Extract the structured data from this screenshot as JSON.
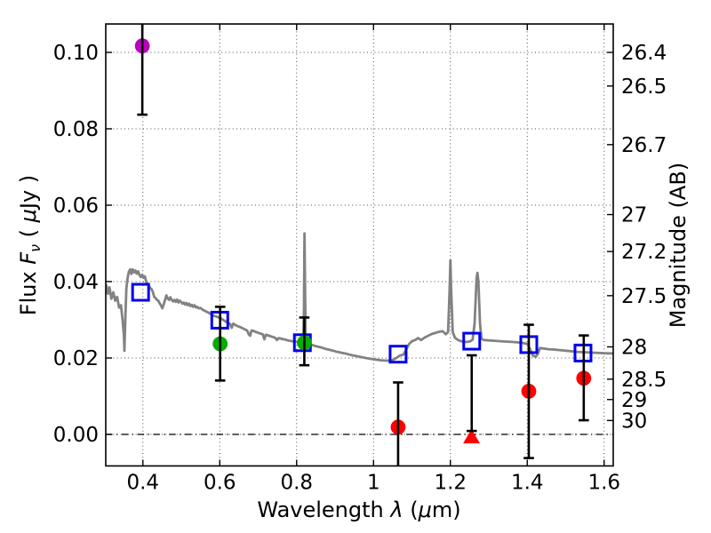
{
  "chart_data": {
    "type": "scatter",
    "title": "",
    "xlabel_parts": [
      {
        "t": "Wavelength  "
      },
      {
        "t": "λ",
        "i": 1
      },
      {
        "t": " ("
      },
      {
        "t": "μ",
        "i": 1
      },
      {
        "t": "m)"
      }
    ],
    "ylabel_left_parts": [
      {
        "t": "Flux  "
      },
      {
        "t": "F",
        "i": 1
      },
      {
        "t": "ν",
        "i": 1,
        "sub": 1
      },
      {
        "t": "  ( "
      },
      {
        "t": "μ",
        "i": 1
      },
      {
        "t": "Jy )"
      }
    ],
    "ylabel_right": "Magnitude (AB)",
    "xlim": [
      0.3034,
      1.6237
    ],
    "ylim": [
      -0.00826,
      0.10744
    ],
    "grid": "dotted, at x ticks and left y ticks",
    "zero_line": "black dash-dot at flux = 0",
    "x_ticks": [
      {
        "v": 0.4,
        "label": "0.4"
      },
      {
        "v": 0.6,
        "label": "0.6"
      },
      {
        "v": 0.8,
        "label": "0.8"
      },
      {
        "v": 1.0,
        "label": "1"
      },
      {
        "v": 1.2,
        "label": "1.2"
      },
      {
        "v": 1.4,
        "label": "1.4"
      },
      {
        "v": 1.6,
        "label": "1.6"
      }
    ],
    "y_ticks_left": [
      {
        "v": 0.0,
        "label": "0.00"
      },
      {
        "v": 0.02,
        "label": "0.02"
      },
      {
        "v": 0.04,
        "label": "0.04"
      },
      {
        "v": 0.06,
        "label": "0.06"
      },
      {
        "v": 0.08,
        "label": "0.08"
      },
      {
        "v": 0.1,
        "label": "0.10"
      }
    ],
    "y_ticks_right": [
      {
        "mag": 26.4,
        "label": "26.4"
      },
      {
        "mag": 26.5,
        "label": "26.5"
      },
      {
        "mag": 26.7,
        "label": "26.7"
      },
      {
        "mag": 27.0,
        "label": "27"
      },
      {
        "mag": 27.2,
        "label": "27.2"
      },
      {
        "mag": 27.5,
        "label": "27.5"
      },
      {
        "mag": 28.0,
        "label": "28"
      },
      {
        "mag": 28.5,
        "label": "28.5"
      },
      {
        "mag": 29.0,
        "label": "29"
      },
      {
        "mag": 30.0,
        "label": "30"
      }
    ],
    "right_axis_zeropoint_mag": 23.9,
    "colors": {
      "spectrum": "#828282",
      "square": "#0000ee",
      "magenta": "#bb00bb",
      "green": "#00ad00",
      "red": "#fe0000",
      "errorbar": "#000000"
    },
    "series": [
      {
        "name": "model_spectrum",
        "type": "line",
        "color": "#828282",
        "points": [
          [
            0.305,
            0.039
          ],
          [
            0.309,
            0.0368
          ],
          [
            0.313,
            0.0385
          ],
          [
            0.318,
            0.0355
          ],
          [
            0.323,
            0.0372
          ],
          [
            0.328,
            0.035
          ],
          [
            0.333,
            0.036
          ],
          [
            0.338,
            0.0332
          ],
          [
            0.343,
            0.0338
          ],
          [
            0.347,
            0.03
          ],
          [
            0.3505,
            0.026
          ],
          [
            0.352,
            0.0219
          ],
          [
            0.3545,
            0.031
          ],
          [
            0.357,
            0.0382
          ],
          [
            0.36,
            0.0408
          ],
          [
            0.3635,
            0.0426
          ],
          [
            0.367,
            0.0432
          ],
          [
            0.37,
            0.042
          ],
          [
            0.3735,
            0.0432
          ],
          [
            0.377,
            0.0424
          ],
          [
            0.3805,
            0.0429
          ],
          [
            0.384,
            0.0421
          ],
          [
            0.3875,
            0.0427
          ],
          [
            0.391,
            0.0417
          ],
          [
            0.3945,
            0.0412
          ],
          [
            0.398,
            0.0418
          ],
          [
            0.4015,
            0.041
          ],
          [
            0.405,
            0.0414
          ],
          [
            0.4085,
            0.04
          ],
          [
            0.412,
            0.0394
          ],
          [
            0.4155,
            0.039
          ],
          [
            0.419,
            0.0383
          ],
          [
            0.4225,
            0.038
          ],
          [
            0.426,
            0.0373
          ],
          [
            0.4295,
            0.036
          ],
          [
            0.433,
            0.0357
          ],
          [
            0.4365,
            0.0352
          ],
          [
            0.44,
            0.035
          ],
          [
            0.4435,
            0.0343
          ],
          [
            0.447,
            0.0338
          ],
          [
            0.4505,
            0.033
          ],
          [
            0.454,
            0.034
          ],
          [
            0.4575,
            0.0351
          ],
          [
            0.461,
            0.0364
          ],
          [
            0.4645,
            0.0356
          ],
          [
            0.468,
            0.0352
          ],
          [
            0.4715,
            0.0359
          ],
          [
            0.475,
            0.0352
          ],
          [
            0.4785,
            0.0348
          ],
          [
            0.482,
            0.0352
          ],
          [
            0.4855,
            0.0347
          ],
          [
            0.489,
            0.0353
          ],
          [
            0.4925,
            0.0345
          ],
          [
            0.496,
            0.035
          ],
          [
            0.4995,
            0.0347
          ],
          [
            0.503,
            0.0342
          ],
          [
            0.5065,
            0.0345
          ],
          [
            0.51,
            0.034
          ],
          [
            0.5135,
            0.0344
          ],
          [
            0.517,
            0.0338
          ],
          [
            0.5205,
            0.0342
          ],
          [
            0.524,
            0.0336
          ],
          [
            0.5275,
            0.0339
          ],
          [
            0.531,
            0.0334
          ],
          [
            0.5345,
            0.0338
          ],
          [
            0.538,
            0.0332
          ],
          [
            0.5415,
            0.0334
          ],
          [
            0.545,
            0.033
          ],
          [
            0.55,
            0.0331
          ],
          [
            0.556,
            0.0326
          ],
          [
            0.562,
            0.0323
          ],
          [
            0.568,
            0.032
          ],
          [
            0.574,
            0.0317
          ],
          [
            0.58,
            0.0313
          ],
          [
            0.586,
            0.031
          ],
          [
            0.592,
            0.0308
          ],
          [
            0.598,
            0.0306
          ],
          [
            0.604,
            0.0303
          ],
          [
            0.61,
            0.0299
          ],
          [
            0.616,
            0.0295
          ],
          [
            0.622,
            0.0292
          ],
          [
            0.627,
            0.0289
          ],
          [
            0.631,
            0.0279
          ],
          [
            0.635,
            0.029
          ],
          [
            0.641,
            0.0286
          ],
          [
            0.647,
            0.0283
          ],
          [
            0.653,
            0.0281
          ],
          [
            0.659,
            0.0278
          ],
          [
            0.665,
            0.0275
          ],
          [
            0.671,
            0.0272
          ],
          [
            0.6755,
            0.0262
          ],
          [
            0.679,
            0.0258
          ],
          [
            0.6825,
            0.0272
          ],
          [
            0.688,
            0.0271
          ],
          [
            0.694,
            0.0268
          ],
          [
            0.7,
            0.0266
          ],
          [
            0.706,
            0.0264
          ],
          [
            0.712,
            0.0262
          ],
          [
            0.716,
            0.0249
          ],
          [
            0.72,
            0.0261
          ],
          [
            0.726,
            0.0259
          ],
          [
            0.732,
            0.0257
          ],
          [
            0.738,
            0.0255
          ],
          [
            0.744,
            0.0253
          ],
          [
            0.749,
            0.0247
          ],
          [
            0.753,
            0.0252
          ],
          [
            0.759,
            0.0251
          ],
          [
            0.765,
            0.0249
          ],
          [
            0.771,
            0.0248
          ],
          [
            0.777,
            0.0246
          ],
          [
            0.783,
            0.0245
          ],
          [
            0.789,
            0.0244
          ],
          [
            0.795,
            0.0243
          ],
          [
            0.801,
            0.0242
          ],
          [
            0.807,
            0.0241
          ],
          [
            0.813,
            0.024
          ],
          [
            0.817,
            0.024
          ],
          [
            0.819,
            0.033
          ],
          [
            0.8205,
            0.0526
          ],
          [
            0.822,
            0.038
          ],
          [
            0.8235,
            0.025
          ],
          [
            0.826,
            0.0237
          ],
          [
            0.832,
            0.0236
          ],
          [
            0.84,
            0.0234
          ],
          [
            0.85,
            0.0231
          ],
          [
            0.862,
            0.0228
          ],
          [
            0.875,
            0.0224
          ],
          [
            0.888,
            0.0221
          ],
          [
            0.902,
            0.0217
          ],
          [
            0.916,
            0.0214
          ],
          [
            0.93,
            0.0211
          ],
          [
            0.945,
            0.0207
          ],
          [
            0.96,
            0.0204
          ],
          [
            0.975,
            0.0201
          ],
          [
            0.99,
            0.0198
          ],
          [
            1.005,
            0.0196
          ],
          [
            1.02,
            0.0194
          ],
          [
            1.035,
            0.0193
          ],
          [
            1.048,
            0.0194
          ],
          [
            1.058,
            0.0199
          ],
          [
            1.068,
            0.0206
          ],
          [
            1.078,
            0.0209
          ],
          [
            1.085,
            0.0222
          ],
          [
            1.092,
            0.0236
          ],
          [
            1.1,
            0.0244
          ],
          [
            1.108,
            0.0247
          ],
          [
            1.116,
            0.0252
          ],
          [
            1.124,
            0.0247
          ],
          [
            1.132,
            0.0253
          ],
          [
            1.142,
            0.0258
          ],
          [
            1.152,
            0.0263
          ],
          [
            1.162,
            0.0266
          ],
          [
            1.172,
            0.0269
          ],
          [
            1.18,
            0.027
          ],
          [
            1.188,
            0.0262
          ],
          [
            1.194,
            0.0268
          ],
          [
            1.198,
            0.038
          ],
          [
            1.2,
            0.0456
          ],
          [
            1.202,
            0.038
          ],
          [
            1.206,
            0.0268
          ],
          [
            1.212,
            0.0253
          ],
          [
            1.22,
            0.0247
          ],
          [
            1.228,
            0.0244
          ],
          [
            1.236,
            0.0242
          ],
          [
            1.244,
            0.0242
          ],
          [
            1.252,
            0.0244
          ],
          [
            1.258,
            0.0248
          ],
          [
            1.263,
            0.029
          ],
          [
            1.268,
            0.0408
          ],
          [
            1.2705,
            0.0423
          ],
          [
            1.273,
            0.04
          ],
          [
            1.277,
            0.029
          ],
          [
            1.281,
            0.025
          ],
          [
            1.288,
            0.0247
          ],
          [
            1.3,
            0.0246
          ],
          [
            1.315,
            0.0245
          ],
          [
            1.33,
            0.0244
          ],
          [
            1.345,
            0.0243
          ],
          [
            1.36,
            0.0242
          ],
          [
            1.375,
            0.0241
          ],
          [
            1.39,
            0.0239
          ],
          [
            1.4,
            0.0237
          ],
          [
            1.408,
            0.0222
          ],
          [
            1.415,
            0.0206
          ],
          [
            1.422,
            0.0203
          ],
          [
            1.428,
            0.0212
          ],
          [
            1.433,
            0.0226
          ],
          [
            1.44,
            0.0225
          ],
          [
            1.455,
            0.0223
          ],
          [
            1.47,
            0.0222
          ],
          [
            1.49,
            0.022
          ],
          [
            1.51,
            0.0218
          ],
          [
            1.53,
            0.0216
          ],
          [
            1.55,
            0.0215
          ],
          [
            1.57,
            0.0214
          ],
          [
            1.59,
            0.0213
          ],
          [
            1.61,
            0.0212
          ],
          [
            1.6237,
            0.0212
          ]
        ]
      },
      {
        "name": "blue_open_squares",
        "type": "scatter",
        "marker": "open-square",
        "color": "#0000ee",
        "points": [
          [
            0.394,
            0.0372
          ],
          [
            0.6,
            0.0299
          ],
          [
            0.815,
            0.024
          ],
          [
            1.064,
            0.021
          ],
          [
            1.2555,
            0.0244
          ],
          [
            1.404,
            0.0235
          ],
          [
            1.545,
            0.0213
          ]
        ]
      },
      {
        "name": "magenta_circle",
        "type": "scatter",
        "marker": "circle",
        "color": "#bb00bb",
        "points": [
          [
            0.3985,
            0.1017
          ]
        ]
      },
      {
        "name": "green_circles",
        "type": "scatter",
        "marker": "circle",
        "color": "#00ad00",
        "points": [
          [
            0.601,
            0.0237
          ],
          [
            0.82,
            0.024
          ]
        ]
      },
      {
        "name": "red_circles",
        "type": "scatter",
        "marker": "circle",
        "color": "#fe0000",
        "points": [
          [
            1.064,
            0.0019
          ],
          [
            1.404,
            0.0113
          ],
          [
            1.547,
            0.0147
          ]
        ]
      },
      {
        "name": "red_upper_limit_triangle",
        "type": "scatter",
        "marker": "triangle-up",
        "color": "#fe0000",
        "points": [
          [
            1.255,
            -0.0006
          ]
        ]
      }
    ],
    "error_bars": [
      {
        "x": 0.3985,
        "lo": 0.0837,
        "hi": 0.1078,
        "cap_lo": true,
        "cap_hi": false,
        "note": "magenta point, upper end clipped at axes top"
      },
      {
        "x": 0.601,
        "lo": 0.0141,
        "hi": 0.0334,
        "cap_lo": true,
        "cap_hi": true
      },
      {
        "x": 0.82,
        "lo": 0.0181,
        "hi": 0.0306,
        "cap_lo": true,
        "cap_hi": true
      },
      {
        "x": 1.064,
        "lo": -0.0086,
        "hi": 0.0136,
        "cap_lo": false,
        "cap_hi": true,
        "note": "red point, lower end clipped at axes bottom"
      },
      {
        "x": 1.2555,
        "lo": 0.0009,
        "hi": 0.0207,
        "cap_lo": true,
        "cap_hi": true,
        "note": "upper limit bar above red triangle"
      },
      {
        "x": 1.404,
        "lo": -0.0062,
        "hi": 0.0287,
        "cap_lo": true,
        "cap_hi": true
      },
      {
        "x": 1.547,
        "lo": 0.0037,
        "hi": 0.0259,
        "cap_lo": true,
        "cap_hi": true
      }
    ]
  }
}
